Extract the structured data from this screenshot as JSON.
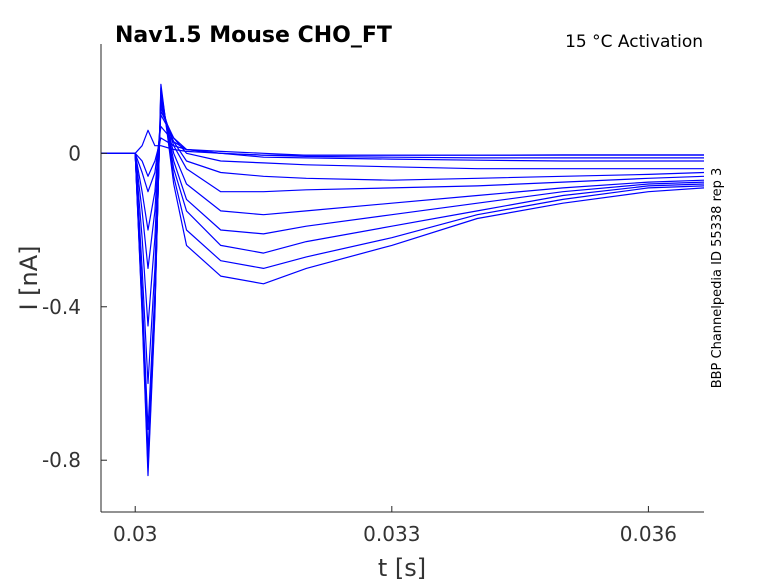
{
  "chart_data": {
    "type": "line",
    "title": "Nav1.5  Mouse  CHO_FT",
    "subtitle": "15 °C  Activation",
    "side_note": "BBP Channelpedia ID 55338 rep 3",
    "xlabel": "t [s]",
    "ylabel": "I [nA]",
    "xlim": [
      0.0296,
      0.03665
    ],
    "ylim": [
      -0.935,
      0.285
    ],
    "xticks": [
      0.03,
      0.033,
      0.036
    ],
    "xtick_labels": [
      "0.03",
      "0.033",
      "0.036"
    ],
    "yticks": [
      -0.8,
      -0.4,
      0
    ],
    "ytick_labels": [
      "-0.8",
      "-0.4",
      "0"
    ],
    "grid": false,
    "line_color": "#0000ff",
    "series": [
      {
        "x": [
          0.0296,
          0.03,
          0.03008,
          0.03015,
          0.03023,
          0.0303,
          0.03045,
          0.0306,
          0.031,
          0.0315,
          0.032,
          0.033,
          0.034,
          0.035,
          0.036,
          0.03665
        ],
        "values": [
          0.0,
          0.0,
          -0.02,
          -0.06,
          -0.02,
          0.04,
          0.02,
          0.01,
          0.005,
          0.0,
          -0.005,
          -0.005,
          -0.005,
          -0.004,
          -0.004,
          -0.004
        ]
      },
      {
        "x": [
          0.0296,
          0.03,
          0.03008,
          0.03015,
          0.03023,
          0.0303,
          0.03045,
          0.0306,
          0.031,
          0.0315,
          0.032,
          0.033,
          0.034,
          0.035,
          0.036,
          0.03665
        ],
        "values": [
          0.0,
          0.0,
          0.02,
          0.06,
          0.02,
          0.02,
          0.01,
          0.005,
          0.0,
          -0.005,
          -0.005,
          -0.005,
          -0.005,
          -0.005,
          -0.005,
          -0.005
        ]
      },
      {
        "x": [
          0.0296,
          0.03,
          0.03008,
          0.03015,
          0.03023,
          0.0303,
          0.03045,
          0.0306,
          0.031,
          0.0315,
          0.032,
          0.033,
          0.034,
          0.035,
          0.036,
          0.03665
        ],
        "values": [
          0.0,
          0.0,
          -0.05,
          -0.1,
          -0.05,
          0.07,
          0.03,
          0.01,
          0.0,
          -0.005,
          -0.008,
          -0.01,
          -0.012,
          -0.012,
          -0.012,
          -0.012
        ]
      },
      {
        "x": [
          0.0296,
          0.03,
          0.03008,
          0.03015,
          0.03023,
          0.0303,
          0.03045,
          0.0306,
          0.031,
          0.0315,
          0.032,
          0.033,
          0.034,
          0.035,
          0.036,
          0.03665
        ],
        "values": [
          0.0,
          0.0,
          -0.1,
          -0.2,
          -0.1,
          0.1,
          0.04,
          0.01,
          0.0,
          -0.01,
          -0.012,
          -0.015,
          -0.018,
          -0.02,
          -0.02,
          -0.02
        ]
      },
      {
        "x": [
          0.0296,
          0.03,
          0.03008,
          0.03015,
          0.03023,
          0.0303,
          0.03045,
          0.0306,
          0.031,
          0.0315,
          0.032,
          0.033,
          0.034,
          0.035,
          0.036,
          0.03665
        ],
        "values": [
          0.0,
          0.0,
          -0.15,
          -0.3,
          -0.15,
          0.11,
          0.04,
          0.0,
          -0.02,
          -0.025,
          -0.03,
          -0.035,
          -0.04,
          -0.04,
          -0.04,
          -0.04
        ]
      },
      {
        "x": [
          0.0296,
          0.03,
          0.03008,
          0.03015,
          0.03023,
          0.0303,
          0.03045,
          0.0306,
          0.031,
          0.0315,
          0.032,
          0.033,
          0.034,
          0.035,
          0.036,
          0.03665
        ],
        "values": [
          0.0,
          0.0,
          -0.22,
          -0.45,
          -0.22,
          0.12,
          0.03,
          -0.02,
          -0.05,
          -0.06,
          -0.065,
          -0.07,
          -0.065,
          -0.06,
          -0.055,
          -0.05
        ]
      },
      {
        "x": [
          0.0296,
          0.03,
          0.03008,
          0.03015,
          0.03023,
          0.0303,
          0.03045,
          0.0306,
          0.031,
          0.0315,
          0.032,
          0.033,
          0.034,
          0.035,
          0.036,
          0.03665
        ],
        "values": [
          0.0,
          0.0,
          -0.3,
          -0.6,
          -0.3,
          0.13,
          0.02,
          -0.04,
          -0.1,
          -0.1,
          -0.095,
          -0.09,
          -0.085,
          -0.075,
          -0.065,
          -0.06
        ]
      },
      {
        "x": [
          0.0296,
          0.03,
          0.03008,
          0.03015,
          0.03023,
          0.0303,
          0.03045,
          0.0306,
          0.031,
          0.0315,
          0.032,
          0.033,
          0.034,
          0.035,
          0.036,
          0.03665
        ],
        "values": [
          0.0,
          0.0,
          -0.36,
          -0.72,
          -0.36,
          0.14,
          0.0,
          -0.08,
          -0.15,
          -0.16,
          -0.15,
          -0.13,
          -0.11,
          -0.09,
          -0.075,
          -0.07
        ]
      },
      {
        "x": [
          0.0296,
          0.03,
          0.03008,
          0.03015,
          0.03023,
          0.0303,
          0.03045,
          0.0306,
          0.031,
          0.0315,
          0.032,
          0.033,
          0.034,
          0.035,
          0.036,
          0.03665
        ],
        "values": [
          0.0,
          0.0,
          -0.39,
          -0.78,
          -0.39,
          0.15,
          -0.02,
          -0.12,
          -0.2,
          -0.21,
          -0.19,
          -0.16,
          -0.13,
          -0.1,
          -0.08,
          -0.075
        ]
      },
      {
        "x": [
          0.0296,
          0.03,
          0.03008,
          0.03015,
          0.03023,
          0.0303,
          0.03045,
          0.0306,
          0.031,
          0.0315,
          0.032,
          0.033,
          0.034,
          0.035,
          0.036,
          0.03665
        ],
        "values": [
          0.0,
          0.0,
          -0.4,
          -0.8,
          -0.4,
          0.16,
          -0.04,
          -0.15,
          -0.24,
          -0.26,
          -0.23,
          -0.19,
          -0.15,
          -0.11,
          -0.085,
          -0.08
        ]
      },
      {
        "x": [
          0.0296,
          0.03,
          0.03008,
          0.03015,
          0.03023,
          0.0303,
          0.03045,
          0.0306,
          0.031,
          0.0315,
          0.032,
          0.033,
          0.034,
          0.035,
          0.036,
          0.03665
        ],
        "values": [
          0.0,
          0.0,
          -0.41,
          -0.82,
          -0.41,
          0.17,
          -0.06,
          -0.2,
          -0.28,
          -0.3,
          -0.27,
          -0.22,
          -0.16,
          -0.12,
          -0.09,
          -0.085
        ]
      },
      {
        "x": [
          0.0296,
          0.03,
          0.03008,
          0.03015,
          0.03023,
          0.0303,
          0.03045,
          0.0306,
          0.031,
          0.0315,
          0.032,
          0.033,
          0.034,
          0.035,
          0.036,
          0.03665
        ],
        "values": [
          0.0,
          0.0,
          -0.42,
          -0.84,
          -0.42,
          0.18,
          -0.08,
          -0.24,
          -0.32,
          -0.34,
          -0.3,
          -0.24,
          -0.17,
          -0.13,
          -0.1,
          -0.09
        ]
      }
    ]
  }
}
